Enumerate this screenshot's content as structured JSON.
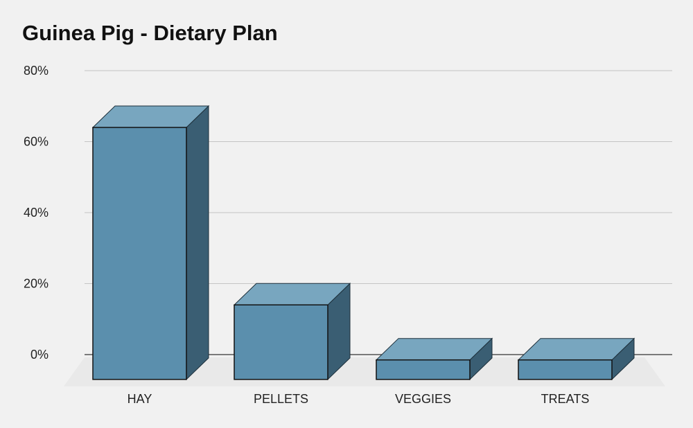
{
  "chart_data": {
    "type": "bar",
    "title": "Guinea Pig - Dietary Plan",
    "categories": [
      "HAY",
      "PELLETS",
      "VEGGIES",
      "TREATS"
    ],
    "values": [
      64,
      14,
      -1.5,
      -1.5
    ],
    "yticks": [
      "80%",
      "60%",
      "40%",
      "20%",
      "0%"
    ],
    "ytick_values": [
      80,
      60,
      40,
      20,
      0
    ],
    "ylim": [
      -7,
      80
    ],
    "grid": true,
    "style": "3d-bar",
    "colors": {
      "front": "#5b8fad",
      "top": "#78a6bf",
      "side": "#3a5e73",
      "grid": "#c4c4c4",
      "floor": "#e6e6e6"
    }
  }
}
